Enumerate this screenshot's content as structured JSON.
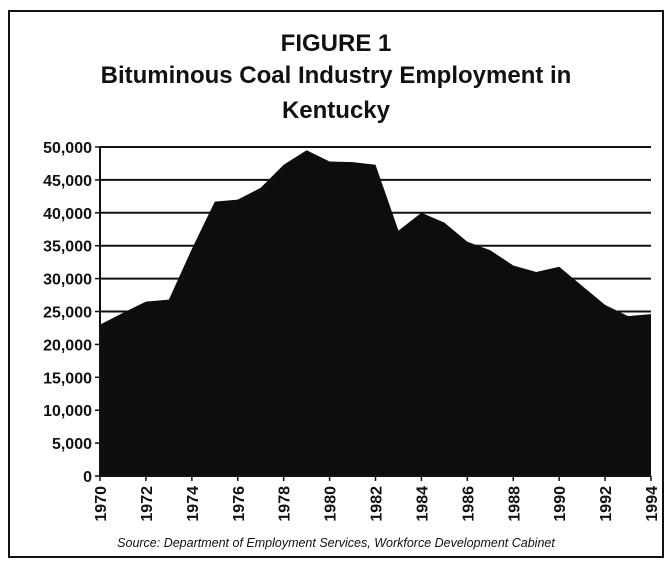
{
  "figure_label": "FIGURE 1",
  "title_line1": "Bituminous Coal Industry Employment in",
  "title_line2": "Kentucky",
  "source": "Source: Department of Employment Services, Workforce Development Cabinet",
  "chart_data": {
    "type": "area",
    "title": "Bituminous Coal Industry Employment in Kentucky",
    "x": [
      1970,
      1971,
      1972,
      1973,
      1974,
      1975,
      1976,
      1977,
      1978,
      1979,
      1980,
      1981,
      1982,
      1983,
      1984,
      1985,
      1986,
      1987,
      1988,
      1989,
      1990,
      1991,
      1992,
      1993,
      1994
    ],
    "values": [
      23000,
      24800,
      26500,
      26800,
      34500,
      41700,
      42000,
      43800,
      47300,
      49500,
      47800,
      47700,
      47300,
      37300,
      40000,
      38500,
      35600,
      34300,
      32000,
      31000,
      31800,
      28900,
      26000,
      24300,
      24600
    ],
    "x_tick_labels": [
      "1970",
      "1972",
      "1974",
      "1976",
      "1978",
      "1980",
      "1982",
      "1984",
      "1986",
      "1988",
      "1990",
      "1992",
      "1994"
    ],
    "y_tick_labels": [
      "0",
      "5,000",
      "10,000",
      "15,000",
      "20,000",
      "25,000",
      "30,000",
      "35,000",
      "40,000",
      "45,000",
      "50,000"
    ],
    "ylim": [
      0,
      50000
    ],
    "xlim": [
      1970,
      1994
    ],
    "grid": true,
    "fill_color": "#0d0d0d"
  }
}
